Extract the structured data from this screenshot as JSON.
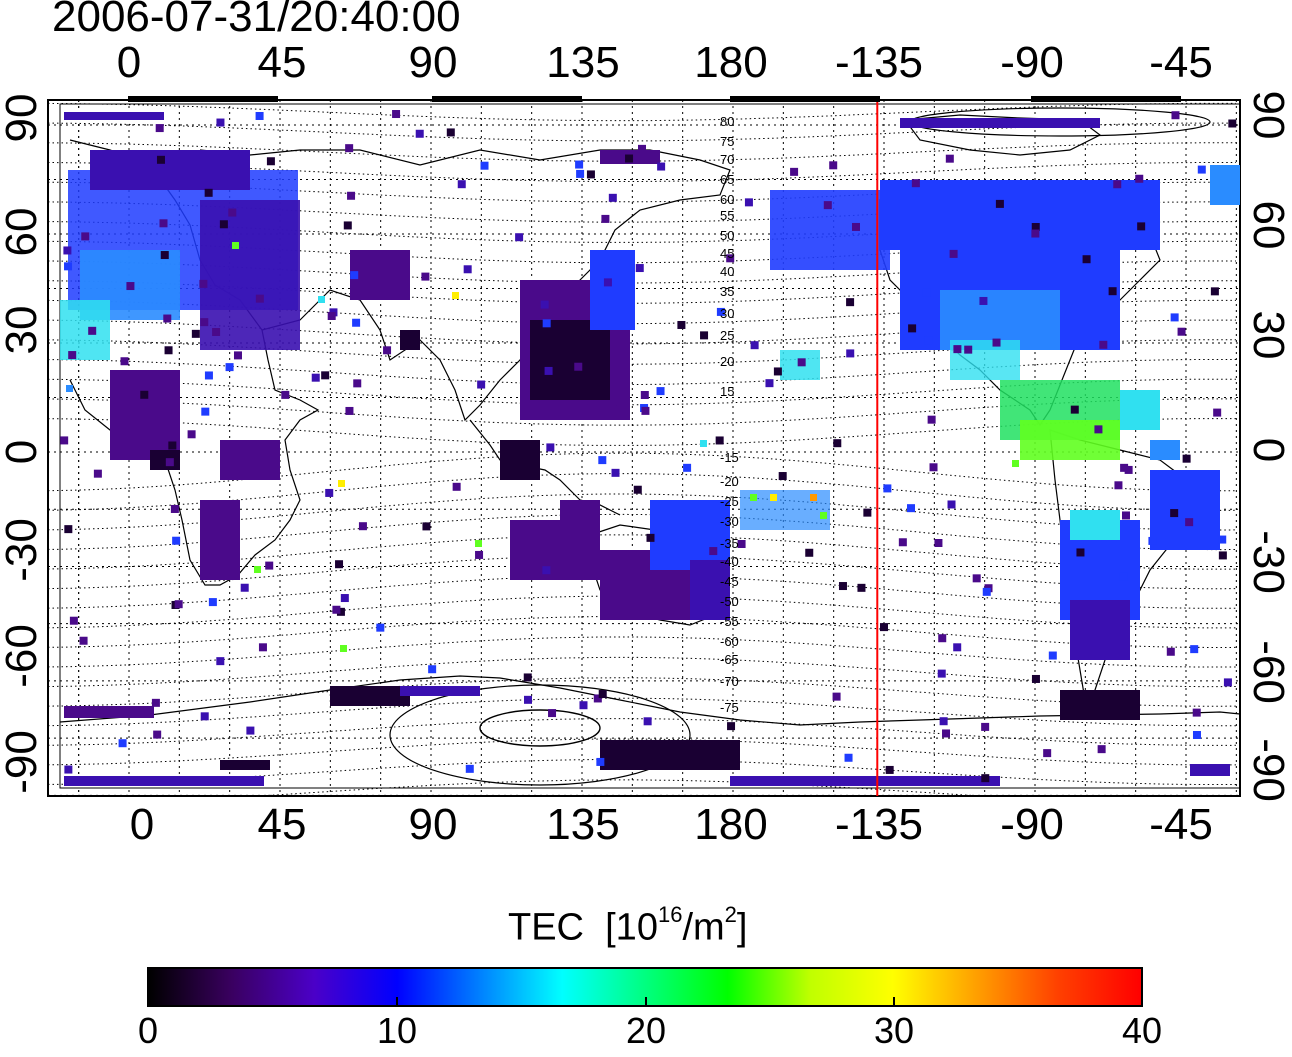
{
  "timestamp": "2006-07-31/20:40:00",
  "map": {
    "type": "global TEC map",
    "projection": "cylindrical equidistant",
    "lon_tick_labels": [
      "0",
      "45",
      "90",
      "135",
      "180",
      "-135",
      "-90",
      "-45"
    ],
    "lat_tick_labels": [
      "90",
      "60",
      "30",
      "0",
      "-30",
      "-60",
      "-90"
    ],
    "contour_labels": [
      "80",
      "75",
      "70",
      "65",
      "60",
      "55",
      "50",
      "45",
      "40",
      "35",
      "30",
      "25",
      "20",
      "15",
      "-15",
      "-20",
      "-25",
      "-30",
      "-35",
      "-40",
      "-45",
      "-50",
      "-55",
      "-60",
      "-65",
      "-70",
      "-75"
    ],
    "meridian_marker_color": "#ff0000",
    "meridian_marker_lon": -137,
    "grid": true
  },
  "colorbar": {
    "title": "TEC",
    "unit_base": "[10",
    "unit_exp1": "16",
    "unit_mid": "/m",
    "unit_exp2": "2",
    "unit_end": "]",
    "min": 0,
    "max": 40,
    "tick_labels": [
      "0",
      "10",
      "20",
      "30",
      "40"
    ],
    "colormap": [
      "#000000",
      "#3a0060",
      "#4b00c8",
      "#0000ff",
      "#0080ff",
      "#00ffff",
      "#00ff80",
      "#00ff00",
      "#c0ff00",
      "#ffff00",
      "#ffa000",
      "#ff4000",
      "#ff0000"
    ]
  }
}
